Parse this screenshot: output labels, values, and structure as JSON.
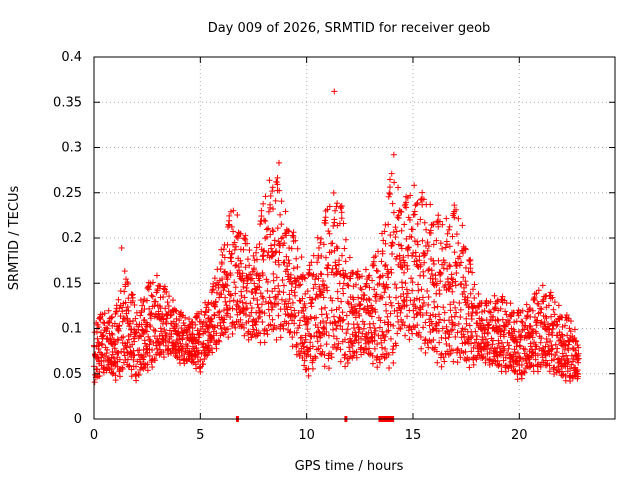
{
  "chart_data": {
    "type": "scatter",
    "title": "Day 009 of 2026, SRMTID for receiver geob",
    "xlabel": "GPS time / hours",
    "ylabel": "SRMTID / TECUs",
    "xlim": [
      0,
      24.5
    ],
    "ylim": [
      0,
      0.4
    ],
    "xticks": [
      0,
      5,
      10,
      15,
      20
    ],
    "yticks": [
      0,
      0.05,
      0.1,
      0.15,
      0.2,
      0.25,
      0.3,
      0.35,
      0.4
    ],
    "ytick_labels": [
      "0",
      "0.05",
      "0.1",
      "0.15",
      "0.2",
      "0.25",
      "0.3",
      "0.35",
      "0.4"
    ],
    "grid": true,
    "marker": "+",
    "color": "#ff0000",
    "series": [
      {
        "name": "SRMTID",
        "envelope": {
          "x": [
            0.0,
            0.5,
            1.0,
            1.5,
            2.0,
            2.5,
            3.0,
            3.5,
            4.0,
            4.5,
            5.0,
            5.5,
            6.0,
            6.5,
            7.0,
            7.5,
            8.0,
            8.5,
            9.0,
            9.5,
            10.0,
            10.5,
            11.0,
            11.5,
            12.0,
            12.5,
            13.0,
            13.5,
            14.0,
            14.5,
            15.0,
            15.5,
            16.0,
            16.5,
            17.0,
            17.5,
            18.0,
            18.5,
            19.0,
            19.5,
            20.0,
            20.5,
            21.0,
            21.5,
            22.0,
            22.5,
            22.8
          ],
          "low": [
            0.04,
            0.05,
            0.04,
            0.05,
            0.04,
            0.05,
            0.06,
            0.07,
            0.06,
            0.06,
            0.05,
            0.07,
            0.08,
            0.09,
            0.09,
            0.08,
            0.08,
            0.08,
            0.09,
            0.07,
            0.04,
            0.06,
            0.05,
            0.06,
            0.05,
            0.07,
            0.06,
            0.05,
            0.05,
            0.09,
            0.08,
            0.07,
            0.06,
            0.05,
            0.06,
            0.05,
            0.06,
            0.06,
            0.05,
            0.05,
            0.04,
            0.05,
            0.05,
            0.05,
            0.04,
            0.04,
            0.04
          ],
          "high": [
            0.11,
            0.12,
            0.12,
            0.17,
            0.12,
            0.15,
            0.16,
            0.14,
            0.12,
            0.11,
            0.12,
            0.14,
            0.19,
            0.24,
            0.21,
            0.18,
            0.25,
            0.28,
            0.23,
            0.2,
            0.16,
            0.2,
            0.24,
            0.26,
            0.18,
            0.16,
            0.17,
            0.2,
            0.28,
            0.24,
            0.26,
            0.25,
            0.23,
            0.22,
            0.24,
            0.2,
            0.14,
            0.13,
            0.14,
            0.13,
            0.12,
            0.13,
            0.15,
            0.14,
            0.12,
            0.11,
            0.08
          ]
        },
        "outliers": [
          {
            "x": 11.3,
            "y": 0.362
          },
          {
            "x": 14.1,
            "y": 0.292
          },
          {
            "x": 8.7,
            "y": 0.283
          },
          {
            "x": 1.3,
            "y": 0.189
          }
        ],
        "zero_clusters": [
          {
            "x_start": 6.7,
            "x_end": 6.8
          },
          {
            "x_start": 11.8,
            "x_end": 11.9
          },
          {
            "x_start": 13.4,
            "x_end": 14.1
          }
        ]
      }
    ]
  }
}
